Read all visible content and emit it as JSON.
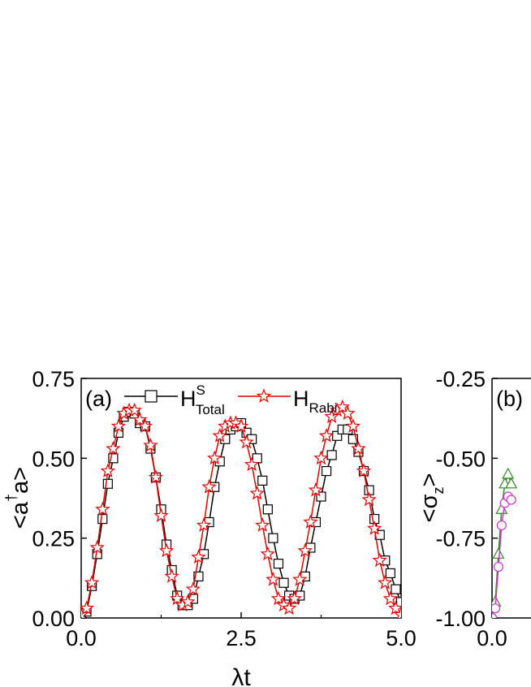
{
  "chart_data": [
    {
      "panel": "(a)",
      "type": "line",
      "xlabel_main": "λt",
      "ylabel_main": "<a",
      "ylabel_sup": "†",
      "ylabel_tail": "a>",
      "xlim": [
        0.0,
        5.0
      ],
      "ylim": [
        0.0,
        0.75
      ],
      "xticks": [
        "0.0",
        "2.5",
        "5.0"
      ],
      "yticks": [
        "0.00",
        "0.25",
        "0.50",
        "0.75"
      ],
      "legend": {
        "placement": "top",
        "entries": [
          {
            "base": "H",
            "sup": "S",
            "sub": "Total"
          },
          {
            "base": "H",
            "sup": "",
            "sub": "Rabi"
          }
        ]
      },
      "series": [
        {
          "key": "total",
          "marker": "square",
          "color": "#000000",
          "marker_fill": "#ffffff",
          "x": [
            0.0,
            0.0833,
            0.1667,
            0.25,
            0.3333,
            0.4167,
            0.5,
            0.5833,
            0.6667,
            0.75,
            0.8333,
            0.9167,
            1.0,
            1.0833,
            1.1667,
            1.25,
            1.3333,
            1.4167,
            1.5,
            1.5833,
            1.6667,
            1.75,
            1.8333,
            1.9167,
            2.0,
            2.0833,
            2.1667,
            2.25,
            2.3333,
            2.4167,
            2.5,
            2.5833,
            2.6667,
            2.75,
            2.8333,
            2.9167,
            3.0,
            3.0833,
            3.1667,
            3.25,
            3.3333,
            3.4167,
            3.5,
            3.5833,
            3.6667,
            3.75,
            3.8333,
            3.9167,
            4.0,
            4.0833,
            4.1667,
            4.25,
            4.3333,
            4.4167,
            4.5,
            4.5833,
            4.6667,
            4.75,
            4.8333,
            4.9167,
            5.0
          ],
          "y": [
            0.01,
            0.02,
            0.1,
            0.2,
            0.31,
            0.42,
            0.5,
            0.58,
            0.63,
            0.645,
            0.64,
            0.61,
            0.6,
            0.53,
            0.44,
            0.34,
            0.23,
            0.15,
            0.07,
            0.04,
            0.04,
            0.06,
            0.13,
            0.2,
            0.3,
            0.41,
            0.49,
            0.56,
            0.59,
            0.6,
            0.61,
            0.58,
            0.56,
            0.5,
            0.43,
            0.34,
            0.25,
            0.17,
            0.11,
            0.07,
            0.06,
            0.07,
            0.13,
            0.22,
            0.3,
            0.38,
            0.46,
            0.51,
            0.57,
            0.59,
            0.59,
            0.56,
            0.52,
            0.46,
            0.4,
            0.31,
            0.26,
            0.18,
            0.14,
            0.09,
            0.05
          ]
        },
        {
          "key": "rabi",
          "marker": "star",
          "color": "#e60000",
          "marker_fill": "#ffffff",
          "x": [
            0.0,
            0.0833,
            0.1667,
            0.25,
            0.3333,
            0.4167,
            0.5,
            0.5833,
            0.6667,
            0.75,
            0.8333,
            0.9167,
            1.0,
            1.0833,
            1.1667,
            1.25,
            1.3333,
            1.4167,
            1.5,
            1.5833,
            1.6667,
            1.75,
            1.8333,
            1.9167,
            2.0,
            2.0833,
            2.1667,
            2.25,
            2.3333,
            2.4167,
            2.5,
            2.5833,
            2.6667,
            2.75,
            2.8333,
            2.9167,
            3.0,
            3.0833,
            3.1667,
            3.25,
            3.3333,
            3.4167,
            3.5,
            3.5833,
            3.6667,
            3.75,
            3.8333,
            3.9167,
            4.0,
            4.0833,
            4.1667,
            4.25,
            4.3333,
            4.4167,
            4.5,
            4.5833,
            4.6667,
            4.75,
            4.8333,
            4.9167,
            5.0
          ],
          "y": [
            0.01,
            0.03,
            0.11,
            0.22,
            0.34,
            0.46,
            0.53,
            0.6,
            0.64,
            0.65,
            0.65,
            0.62,
            0.6,
            0.54,
            0.44,
            0.32,
            0.21,
            0.13,
            0.06,
            0.04,
            0.05,
            0.09,
            0.19,
            0.29,
            0.41,
            0.5,
            0.57,
            0.6,
            0.61,
            0.61,
            0.6,
            0.55,
            0.48,
            0.39,
            0.29,
            0.2,
            0.12,
            0.06,
            0.04,
            0.03,
            0.06,
            0.12,
            0.21,
            0.3,
            0.4,
            0.5,
            0.57,
            0.63,
            0.65,
            0.66,
            0.64,
            0.6,
            0.53,
            0.46,
            0.37,
            0.28,
            0.18,
            0.11,
            0.06,
            0.03,
            0.01
          ]
        }
      ]
    },
    {
      "panel": "(b)",
      "type": "line",
      "ylabel_main": "<σ",
      "ylabel_sub": "z",
      "ylabel_tail": ">",
      "xlim": [
        0.0,
        5.0
      ],
      "ylim": [
        -1.0,
        -0.25
      ],
      "xticks": [
        "0.0"
      ],
      "yticks": [
        "-1.00",
        "-0.75",
        "-0.50",
        "-0.25"
      ],
      "series": [
        {
          "key": "triangle",
          "marker": "triangle",
          "color": "#2e8b20",
          "marker_fill": "#ffffff",
          "x": [
            0.0,
            0.05,
            0.1,
            0.15,
            0.2,
            0.25,
            0.3
          ],
          "y": [
            -1.0,
            -0.95,
            -0.8,
            -0.66,
            -0.58,
            -0.55,
            -0.58
          ]
        },
        {
          "key": "circle",
          "marker": "circle",
          "color": "#cc33cc",
          "marker_fill": "#ffffff",
          "x": [
            0.0,
            0.05,
            0.1,
            0.15,
            0.2,
            0.25,
            0.3
          ],
          "y": [
            -1.0,
            -0.97,
            -0.84,
            -0.71,
            -0.64,
            -0.62,
            -0.63
          ]
        }
      ]
    }
  ]
}
